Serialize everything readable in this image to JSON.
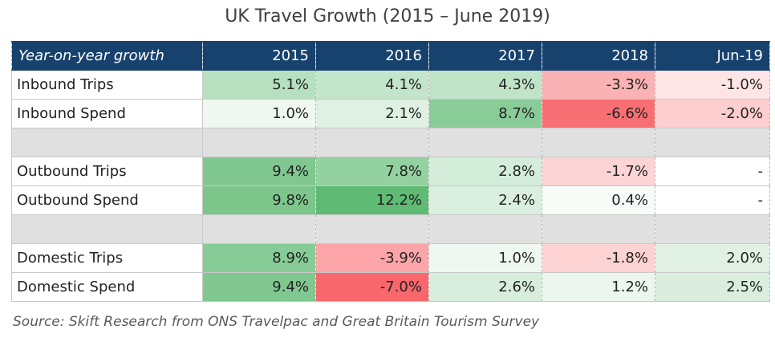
{
  "title": "UK Travel Growth (2015 – June 2019)",
  "source": "Source: Skift Research from ONS Travelpac and Great Britain Tourism Survey",
  "chart_data": {
    "type": "table",
    "header_label": "Year-on-year growth",
    "columns": [
      "2015",
      "2016",
      "2017",
      "2018",
      "Jun-19"
    ],
    "rows": [
      {
        "label": "Inbound Trips",
        "values": [
          5.1,
          4.1,
          4.3,
          -3.3,
          -1.0
        ],
        "display": [
          "5.1%",
          "4.1%",
          "4.3%",
          "-3.3%",
          "-1.0%"
        ]
      },
      {
        "label": "Inbound Spend",
        "values": [
          1.0,
          2.1,
          8.7,
          -6.6,
          -2.0
        ],
        "display": [
          "1.0%",
          "2.1%",
          "8.7%",
          "-6.6%",
          "-2.0%"
        ]
      },
      {
        "spacer": true
      },
      {
        "label": "Outbound Trips",
        "values": [
          9.4,
          7.8,
          2.8,
          -1.7,
          null
        ],
        "display": [
          "9.4%",
          "7.8%",
          "2.8%",
          "-1.7%",
          "-"
        ]
      },
      {
        "label": "Outbound Spend",
        "values": [
          9.8,
          12.2,
          2.4,
          0.4,
          null
        ],
        "display": [
          "9.8%",
          "12.2%",
          "2.4%",
          "0.4%",
          "-"
        ]
      },
      {
        "spacer": true
      },
      {
        "label": "Domestic Trips",
        "values": [
          8.9,
          -3.9,
          1.0,
          -1.8,
          2.0
        ],
        "display": [
          "8.9%",
          "-3.9%",
          "1.0%",
          "-1.8%",
          "2.0%"
        ]
      },
      {
        "label": "Domestic Spend",
        "values": [
          9.4,
          -7.0,
          2.6,
          1.2,
          2.5
        ],
        "display": [
          "9.4%",
          "-7.0%",
          "2.6%",
          "1.2%",
          "2.5%"
        ]
      }
    ],
    "colors": {
      "header_bg": "#18426e",
      "positive_max": "#5fba73",
      "negative_max": "#f8676b",
      "neutral": "#ffffff",
      "spacer": "#e0e0e0"
    }
  }
}
